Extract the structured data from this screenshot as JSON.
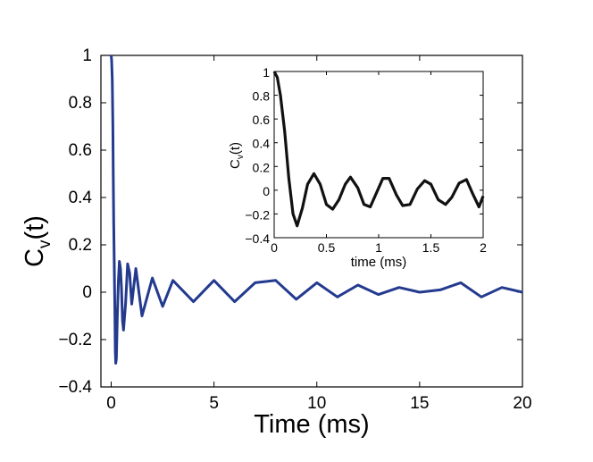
{
  "chart_data": [
    {
      "type": "line",
      "title": "",
      "xlabel": "Time (ms)",
      "ylabel": "C_v(t)",
      "xlim": [
        -0.5,
        20
      ],
      "ylim": [
        -0.4,
        1
      ],
      "xticks": [
        "0",
        "5",
        "10",
        "15",
        "20"
      ],
      "yticks": [
        "−0.4",
        "−0.2",
        "0",
        "0.2",
        "0.4",
        "0.6",
        "0.8",
        "1"
      ],
      "grid": false,
      "series_color": "#233a8e",
      "series": [
        {
          "x": [
            0,
            0.02,
            0.05,
            0.08,
            0.1,
            0.12,
            0.15,
            0.18,
            0.2,
            0.22,
            0.25,
            0.3,
            0.35,
            0.4,
            0.45,
            0.5,
            0.55,
            0.6,
            0.7,
            0.8,
            0.9,
            1.0,
            1.2,
            1.5,
            2,
            2.5,
            3,
            4,
            5,
            6,
            7,
            8,
            9,
            10,
            11,
            12,
            13,
            14,
            15,
            16,
            17,
            18,
            19,
            20
          ],
          "y": [
            1,
            0.98,
            0.9,
            0.7,
            0.5,
            0.3,
            0.1,
            -0.1,
            -0.25,
            -0.3,
            -0.28,
            -0.1,
            0.05,
            0.13,
            0.1,
            0.02,
            -0.12,
            -0.16,
            -0.05,
            0.12,
            0.08,
            -0.05,
            0.1,
            -0.1,
            0.06,
            -0.06,
            0.05,
            -0.04,
            0.05,
            -0.04,
            0.04,
            0.05,
            -0.03,
            0.04,
            -0.02,
            0.03,
            -0.01,
            0.02,
            0.0,
            0.01,
            0.04,
            -0.02,
            0.02,
            0.0
          ]
        }
      ]
    },
    {
      "type": "line",
      "title": "",
      "xlabel": "time (ms)",
      "ylabel": "C_v(t)",
      "xlim": [
        0,
        2
      ],
      "ylim": [
        -0.4,
        1
      ],
      "xticks": [
        "0",
        "0.5",
        "1",
        "1.5",
        "2"
      ],
      "yticks": [
        "−0.4",
        "−0.2",
        "0",
        "0.2",
        "0.4",
        "0.6",
        "0.8",
        "1"
      ],
      "grid": false,
      "series_color": "#111111",
      "series": [
        {
          "x": [
            0,
            0.03,
            0.06,
            0.1,
            0.14,
            0.18,
            0.22,
            0.27,
            0.32,
            0.38,
            0.44,
            0.5,
            0.56,
            0.62,
            0.68,
            0.73,
            0.8,
            0.86,
            0.92,
            0.98,
            1.04,
            1.1,
            1.17,
            1.23,
            1.3,
            1.37,
            1.44,
            1.5,
            1.57,
            1.64,
            1.7,
            1.77,
            1.84,
            1.9,
            1.96,
            2.0
          ],
          "y": [
            1,
            0.95,
            0.8,
            0.5,
            0.1,
            -0.2,
            -0.3,
            -0.15,
            0.05,
            0.14,
            0.05,
            -0.12,
            -0.16,
            -0.08,
            0.05,
            0.11,
            0.02,
            -0.12,
            -0.14,
            -0.02,
            0.1,
            0.1,
            -0.04,
            -0.13,
            -0.12,
            0.01,
            0.08,
            0.05,
            -0.08,
            -0.12,
            -0.06,
            0.06,
            0.09,
            -0.03,
            -0.14,
            -0.05
          ]
        }
      ]
    }
  ],
  "main_xlabel": "Time (ms)",
  "main_ylabel_main": "C",
  "main_ylabel_sub": "v",
  "main_ylabel_tail": "(t)",
  "inset_xlabel": "time (ms)",
  "inset_ylabel_main": "C",
  "inset_ylabel_sub": "v",
  "inset_ylabel_tail": "(t)"
}
